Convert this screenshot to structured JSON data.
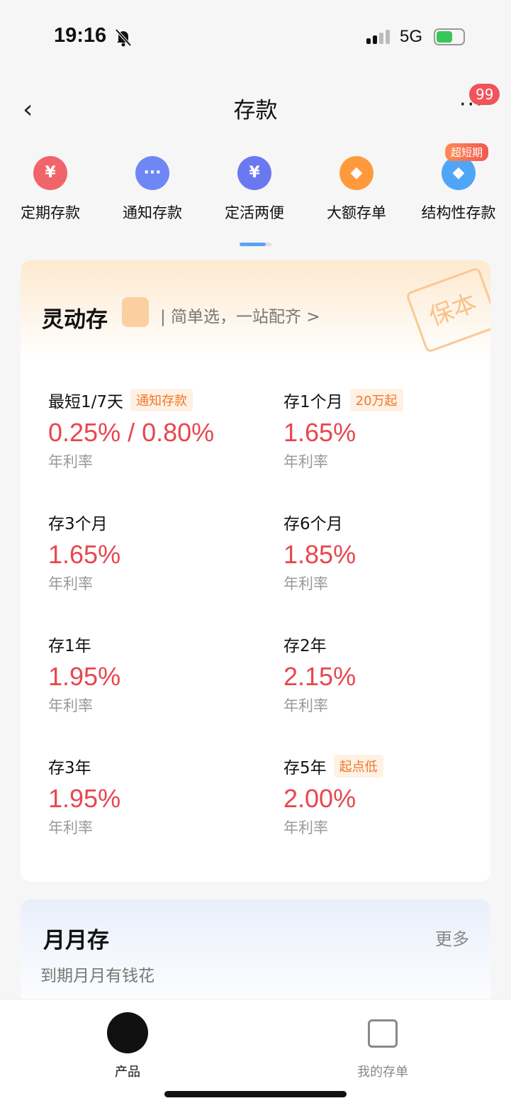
{
  "status": {
    "time": "19:16",
    "network": "5G",
    "battery_level": 0.6
  },
  "nav": {
    "title": "存款",
    "badge": "99",
    "more": "···"
  },
  "categories": [
    {
      "label": "定期存款",
      "icon": "piggy-bank-icon",
      "color": "#f0646a",
      "glyph": "¥"
    },
    {
      "label": "通知存款",
      "icon": "message-icon",
      "color": "#6f87f5",
      "glyph": "···"
    },
    {
      "label": "定活两便",
      "icon": "yuan-coin-icon",
      "color": "#6b79f0",
      "glyph": "¥"
    },
    {
      "label": "大额存单",
      "icon": "diamond-icon",
      "color": "#ff9a3c",
      "glyph": "◆"
    },
    {
      "label": "结构性存款",
      "icon": "structured-icon",
      "color": "#4fa6f7",
      "glyph": "◆",
      "chip": "超短期"
    }
  ],
  "card": {
    "title": "灵动存",
    "subtitle": "| 简单选，一站配齐 >",
    "stamp": "保本",
    "items": [
      {
        "label": "最短1/7天",
        "tag": "通知存款",
        "rate": "0.25% / 0.80%",
        "unit": "年利率"
      },
      {
        "label": "存1个月",
        "tag": "20万起",
        "rate": "1.65%",
        "unit": "年利率"
      },
      {
        "label": "存3个月",
        "rate": "1.65%",
        "unit": "年利率"
      },
      {
        "label": "存6个月",
        "rate": "1.85%",
        "unit": "年利率"
      },
      {
        "label": "存1年",
        "rate": "1.95%",
        "unit": "年利率"
      },
      {
        "label": "存2年",
        "rate": "2.15%",
        "unit": "年利率"
      },
      {
        "label": "存3年",
        "rate": "1.95%",
        "unit": "年利率"
      },
      {
        "label": "存5年",
        "tag": "起点低",
        "rate": "2.00%",
        "unit": "年利率"
      }
    ]
  },
  "card2": {
    "title": "月月存",
    "more": "更多",
    "subtitle": "到期月月有钱花"
  },
  "tabs": [
    {
      "label": "产品",
      "active": true
    },
    {
      "label": "我的存单",
      "active": false
    }
  ]
}
